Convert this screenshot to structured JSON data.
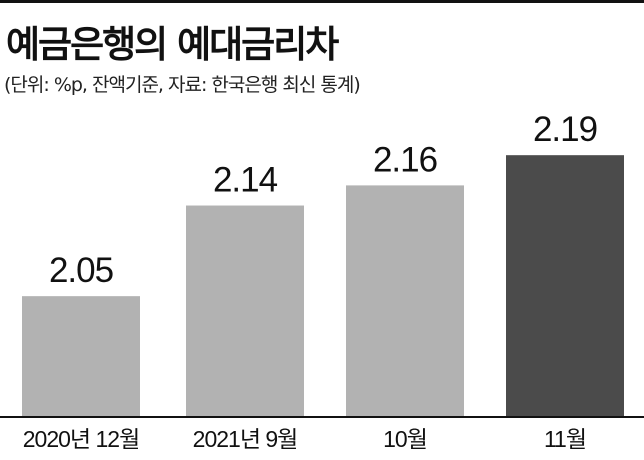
{
  "title": "예금은행의 예대금리차",
  "subtitle": "(단위: %p, 잔액기준, 자료: 한국은행 최신 통계)",
  "chart_data": {
    "type": "bar",
    "title": "예금은행의 예대금리차",
    "subtitle": "(단위: %p, 잔액기준, 자료: 한국은행 최신 통계)",
    "categories": [
      "2020년 12월",
      "2021년 9월",
      "10월",
      "11월"
    ],
    "values": [
      2.05,
      2.14,
      2.16,
      2.19
    ],
    "value_labels": [
      "2.05",
      "2.14",
      "2.16",
      "2.19"
    ],
    "bar_colors": [
      "#b2b2b2",
      "#b2b2b2",
      "#b2b2b2",
      "#4b4b4b"
    ],
    "xlabel": "",
    "ylabel": "",
    "grid": false,
    "legend": "none"
  }
}
